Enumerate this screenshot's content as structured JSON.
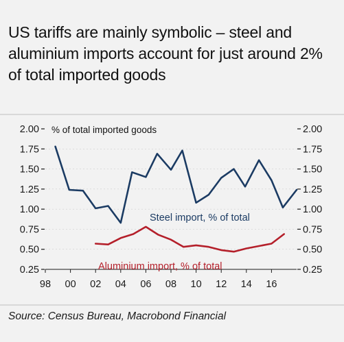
{
  "title": "US tariffs are mainly symbolic – steel and aluminium imports account for just around 2% of total imported goods",
  "source": "Source: Census Bureau, Macrobond Financial",
  "colors": {
    "background": "#f2f2f2",
    "steel": "#1b3b63",
    "aluminium": "#b41f2a",
    "text": "#111111",
    "axis": "#1a1a1a",
    "grid": "#cfcfcf"
  },
  "chart_data": {
    "type": "line",
    "title": "US tariffs are mainly symbolic – steel and aluminium imports account for just around 2% of total imported goods",
    "ylabel": "% of total imported goods",
    "xlabel": "",
    "ylim": [
      0.25,
      2.0
    ],
    "xlim": [
      1998,
      2018
    ],
    "yticks": [
      0.25,
      0.5,
      0.75,
      1.0,
      1.25,
      1.5,
      1.75,
      2.0
    ],
    "y_tick_labels_left": [
      "0.25",
      "0.50",
      "0.75",
      "1.00",
      "1.25",
      "1.50",
      "1.75",
      "2.00"
    ],
    "y_tick_labels_right": [
      "0.25",
      "0.50",
      "0.75",
      "1.00",
      "1.25",
      "1.50",
      "1.75",
      "2.00"
    ],
    "xticks": [
      1998,
      2000,
      2002,
      2004,
      2006,
      2008,
      2010,
      2012,
      2014,
      2016
    ],
    "x_tick_labels": [
      "98",
      "00",
      "02",
      "04",
      "06",
      "08",
      "10",
      "12",
      "14",
      "16"
    ],
    "grid": true,
    "legend": "inline labels",
    "series": [
      {
        "name": "Steel import, % of total",
        "color": "#1b3b63",
        "points": [
          [
            1998.8,
            1.78
          ],
          [
            1999.9,
            1.24
          ],
          [
            2001.0,
            1.23
          ],
          [
            2002.0,
            1.01
          ],
          [
            2003.0,
            1.04
          ],
          [
            2004.0,
            0.83
          ],
          [
            2004.9,
            1.46
          ],
          [
            2006.0,
            1.4
          ],
          [
            2006.9,
            1.69
          ],
          [
            2008.0,
            1.49
          ],
          [
            2008.9,
            1.73
          ],
          [
            2010.0,
            1.08
          ],
          [
            2011.0,
            1.18
          ],
          [
            2012.0,
            1.39
          ],
          [
            2013.0,
            1.5
          ],
          [
            2013.9,
            1.28
          ],
          [
            2015.0,
            1.61
          ],
          [
            2016.0,
            1.36
          ],
          [
            2016.9,
            1.02
          ],
          [
            2018.0,
            1.24
          ]
        ]
      },
      {
        "name": "Aluminium import, % of total",
        "color": "#b41f2a",
        "points": [
          [
            2002.0,
            0.57
          ],
          [
            2003.0,
            0.56
          ],
          [
            2004.0,
            0.64
          ],
          [
            2005.0,
            0.69
          ],
          [
            2006.0,
            0.78
          ],
          [
            2007.0,
            0.68
          ],
          [
            2008.0,
            0.62
          ],
          [
            2009.0,
            0.53
          ],
          [
            2010.0,
            0.55
          ],
          [
            2011.0,
            0.53
          ],
          [
            2012.0,
            0.49
          ],
          [
            2013.0,
            0.47
          ],
          [
            2014.0,
            0.51
          ],
          [
            2015.0,
            0.54
          ],
          [
            2016.0,
            0.57
          ],
          [
            2017.0,
            0.69
          ]
        ]
      }
    ]
  }
}
